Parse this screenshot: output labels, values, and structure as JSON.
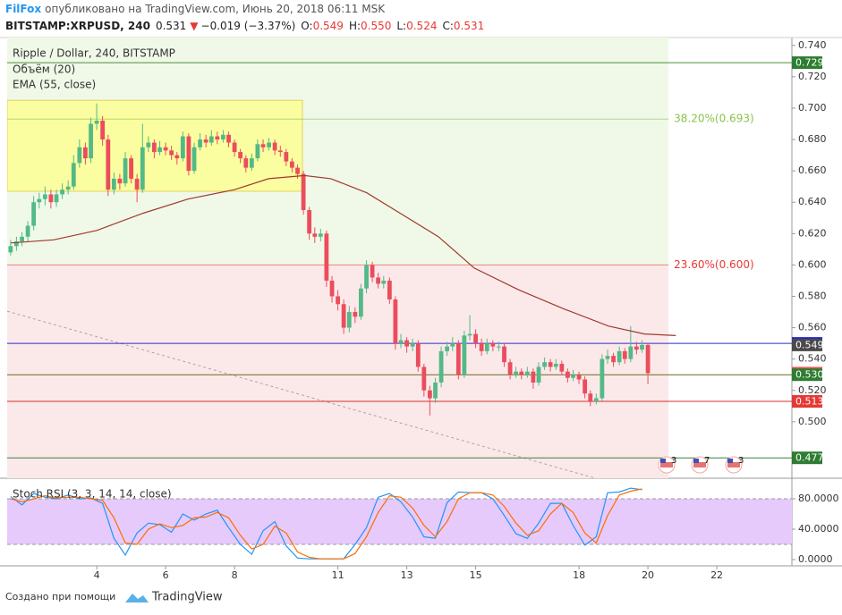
{
  "header": {
    "author": "FilFox",
    "published": "опубликовано на TradingView.com, Июнь 20, 2018 06:11 MSK",
    "symbol": "BITSTAMP:XRPUSD, 240",
    "last": "0.531",
    "arrow": "▼",
    "change": "−0.019 (−3.37%)",
    "ohlc": [
      {
        "key": "O:",
        "value": "0.549"
      },
      {
        "key": "H:",
        "value": "0.550"
      },
      {
        "key": "L:",
        "value": "0.524"
      },
      {
        "key": "C:",
        "value": "0.531"
      }
    ]
  },
  "footer": {
    "text": "Создано при помощи",
    "brand": "TradingView"
  },
  "chart_data": [
    {
      "type": "candlestick",
      "title": "Ripple / Dollar, 240, BITSTAMP",
      "indicators": [
        "Объём (20)",
        "EMA (55, close)"
      ],
      "up_color": "#53b987",
      "down_color": "#eb4d5c",
      "xlim": [
        1.4,
        24.18
      ],
      "ylim": [
        0.464,
        0.745
      ],
      "yticks": [
        {
          "value": 0.5,
          "label": "0.500"
        },
        {
          "value": 0.52,
          "label": "0.520"
        },
        {
          "value": 0.54,
          "label": "0.540"
        },
        {
          "value": 0.56,
          "label": "0.560"
        },
        {
          "value": 0.58,
          "label": "0.580"
        },
        {
          "value": 0.6,
          "label": "0.600"
        },
        {
          "value": 0.62,
          "label": "0.620"
        },
        {
          "value": 0.64,
          "label": "0.640"
        },
        {
          "value": 0.66,
          "label": "0.660"
        },
        {
          "value": 0.68,
          "label": "0.680"
        },
        {
          "value": 0.7,
          "label": "0.700"
        },
        {
          "value": 0.72,
          "label": "0.720"
        },
        {
          "value": 0.74,
          "label": "0.740"
        }
      ],
      "x": [
        1.5,
        1.67,
        1.83,
        2,
        2.17,
        2.33,
        2.5,
        2.67,
        2.83,
        3,
        3.17,
        3.33,
        3.5,
        3.67,
        3.83,
        4,
        4.17,
        4.33,
        4.5,
        4.67,
        4.83,
        5,
        5.17,
        5.33,
        5.5,
        5.67,
        5.83,
        6,
        6.17,
        6.33,
        6.5,
        6.67,
        6.83,
        7,
        7.17,
        7.33,
        7.5,
        7.67,
        7.83,
        8,
        8.17,
        8.33,
        8.5,
        8.67,
        8.83,
        9,
        9.17,
        9.33,
        9.5,
        9.67,
        9.83,
        10,
        10.17,
        10.33,
        10.5,
        10.67,
        10.83,
        11,
        11.17,
        11.33,
        11.5,
        11.67,
        11.83,
        12,
        12.17,
        12.33,
        12.5,
        12.67,
        12.83,
        13,
        13.17,
        13.33,
        13.5,
        13.67,
        13.83,
        14,
        14.17,
        14.33,
        14.5,
        14.67,
        14.83,
        15,
        15.17,
        15.33,
        15.5,
        15.67,
        15.83,
        16,
        16.17,
        16.33,
        16.5,
        16.67,
        16.83,
        17,
        17.17,
        17.33,
        17.5,
        17.67,
        17.83,
        18,
        18.17,
        18.33,
        18.5,
        18.67,
        18.83,
        19,
        19.17,
        19.33,
        19.5,
        19.67,
        19.83,
        20
      ],
      "candles": [
        [
          0.608,
          0.616,
          0.606,
          0.612
        ],
        [
          0.612,
          0.618,
          0.609,
          0.615
        ],
        [
          0.615,
          0.621,
          0.612,
          0.618
        ],
        [
          0.618,
          0.628,
          0.615,
          0.625
        ],
        [
          0.625,
          0.644,
          0.622,
          0.64
        ],
        [
          0.64,
          0.646,
          0.636,
          0.642
        ],
        [
          0.642,
          0.65,
          0.638,
          0.645
        ],
        [
          0.645,
          0.648,
          0.636,
          0.64
        ],
        [
          0.64,
          0.648,
          0.637,
          0.645
        ],
        [
          0.645,
          0.652,
          0.642,
          0.648
        ],
        [
          0.648,
          0.654,
          0.645,
          0.65
        ],
        [
          0.65,
          0.67,
          0.648,
          0.665
        ],
        [
          0.665,
          0.68,
          0.662,
          0.675
        ],
        [
          0.675,
          0.678,
          0.664,
          0.668
        ],
        [
          0.668,
          0.694,
          0.665,
          0.69
        ],
        [
          0.69,
          0.703,
          0.686,
          0.692
        ],
        [
          0.692,
          0.695,
          0.676,
          0.68
        ],
        [
          0.68,
          0.683,
          0.644,
          0.648
        ],
        [
          0.648,
          0.659,
          0.645,
          0.655
        ],
        [
          0.655,
          0.658,
          0.648,
          0.652
        ],
        [
          0.652,
          0.672,
          0.65,
          0.668
        ],
        [
          0.668,
          0.67,
          0.652,
          0.655
        ],
        [
          0.655,
          0.658,
          0.64,
          0.648
        ],
        [
          0.648,
          0.69,
          0.646,
          0.675
        ],
        [
          0.675,
          0.682,
          0.672,
          0.678
        ],
        [
          0.678,
          0.68,
          0.668,
          0.672
        ],
        [
          0.672,
          0.679,
          0.67,
          0.675
        ],
        [
          0.675,
          0.678,
          0.67,
          0.673
        ],
        [
          0.673,
          0.676,
          0.667,
          0.67
        ],
        [
          0.67,
          0.672,
          0.664,
          0.668
        ],
        [
          0.668,
          0.685,
          0.666,
          0.682
        ],
        [
          0.682,
          0.684,
          0.657,
          0.66
        ],
        [
          0.66,
          0.678,
          0.658,
          0.675
        ],
        [
          0.675,
          0.684,
          0.673,
          0.68
        ],
        [
          0.68,
          0.683,
          0.675,
          0.678
        ],
        [
          0.678,
          0.686,
          0.676,
          0.682
        ],
        [
          0.682,
          0.685,
          0.677,
          0.68
        ],
        [
          0.68,
          0.686,
          0.678,
          0.683
        ],
        [
          0.683,
          0.685,
          0.675,
          0.678
        ],
        [
          0.678,
          0.68,
          0.669,
          0.672
        ],
        [
          0.672,
          0.674,
          0.665,
          0.668
        ],
        [
          0.668,
          0.67,
          0.659,
          0.662
        ],
        [
          0.662,
          0.671,
          0.66,
          0.668
        ],
        [
          0.668,
          0.68,
          0.666,
          0.677
        ],
        [
          0.677,
          0.68,
          0.672,
          0.675
        ],
        [
          0.675,
          0.681,
          0.673,
          0.678
        ],
        [
          0.678,
          0.68,
          0.67,
          0.673
        ],
        [
          0.673,
          0.676,
          0.669,
          0.672
        ],
        [
          0.672,
          0.674,
          0.663,
          0.666
        ],
        [
          0.666,
          0.668,
          0.659,
          0.662
        ],
        [
          0.662,
          0.664,
          0.655,
          0.658
        ],
        [
          0.658,
          0.66,
          0.632,
          0.635
        ],
        [
          0.635,
          0.637,
          0.616,
          0.62
        ],
        [
          0.62,
          0.624,
          0.614,
          0.618
        ],
        [
          0.618,
          0.623,
          0.615,
          0.62
        ],
        [
          0.62,
          0.622,
          0.586,
          0.59
        ],
        [
          0.59,
          0.593,
          0.576,
          0.58
        ],
        [
          0.58,
          0.584,
          0.571,
          0.575
        ],
        [
          0.575,
          0.578,
          0.556,
          0.56
        ],
        [
          0.56,
          0.574,
          0.557,
          0.57
        ],
        [
          0.57,
          0.573,
          0.563,
          0.567
        ],
        [
          0.567,
          0.588,
          0.565,
          0.585
        ],
        [
          0.585,
          0.603,
          0.582,
          0.6
        ],
        [
          0.6,
          0.602,
          0.589,
          0.592
        ],
        [
          0.592,
          0.595,
          0.585,
          0.588
        ],
        [
          0.588,
          0.593,
          0.585,
          0.59
        ],
        [
          0.59,
          0.592,
          0.575,
          0.578
        ],
        [
          0.578,
          0.58,
          0.546,
          0.55
        ],
        [
          0.55,
          0.556,
          0.547,
          0.552
        ],
        [
          0.552,
          0.554,
          0.544,
          0.548
        ],
        [
          0.548,
          0.553,
          0.545,
          0.55
        ],
        [
          0.55,
          0.552,
          0.532,
          0.535
        ],
        [
          0.535,
          0.537,
          0.516,
          0.52
        ],
        [
          0.52,
          0.523,
          0.504,
          0.515
        ],
        [
          0.515,
          0.528,
          0.512,
          0.525
        ],
        [
          0.525,
          0.548,
          0.522,
          0.545
        ],
        [
          0.545,
          0.551,
          0.542,
          0.548
        ],
        [
          0.548,
          0.554,
          0.545,
          0.55
        ],
        [
          0.55,
          0.552,
          0.527,
          0.53
        ],
        [
          0.53,
          0.558,
          0.528,
          0.555
        ],
        [
          0.555,
          0.568,
          0.552,
          0.556
        ],
        [
          0.556,
          0.559,
          0.547,
          0.55
        ],
        [
          0.55,
          0.553,
          0.542,
          0.545
        ],
        [
          0.545,
          0.553,
          0.543,
          0.55
        ],
        [
          0.55,
          0.552,
          0.545,
          0.548
        ],
        [
          0.548,
          0.551,
          0.545,
          0.548
        ],
        [
          0.548,
          0.55,
          0.535,
          0.538
        ],
        [
          0.538,
          0.54,
          0.527,
          0.53
        ],
        [
          0.53,
          0.535,
          0.528,
          0.532
        ],
        [
          0.532,
          0.534,
          0.527,
          0.53
        ],
        [
          0.53,
          0.535,
          0.528,
          0.532
        ],
        [
          0.532,
          0.534,
          0.521,
          0.525
        ],
        [
          0.525,
          0.538,
          0.523,
          0.535
        ],
        [
          0.535,
          0.541,
          0.533,
          0.538
        ],
        [
          0.538,
          0.54,
          0.532,
          0.535
        ],
        [
          0.535,
          0.54,
          0.533,
          0.537
        ],
        [
          0.537,
          0.539,
          0.53,
          0.532
        ],
        [
          0.532,
          0.534,
          0.525,
          0.528
        ],
        [
          0.528,
          0.533,
          0.526,
          0.53
        ],
        [
          0.53,
          0.532,
          0.524,
          0.527
        ],
        [
          0.527,
          0.529,
          0.515,
          0.518
        ],
        [
          0.518,
          0.52,
          0.51,
          0.513
        ],
        [
          0.513,
          0.518,
          0.511,
          0.515
        ],
        [
          0.515,
          0.543,
          0.513,
          0.54
        ],
        [
          0.54,
          0.546,
          0.537,
          0.542
        ],
        [
          0.542,
          0.544,
          0.535,
          0.538
        ],
        [
          0.538,
          0.548,
          0.536,
          0.545
        ],
        [
          0.545,
          0.547,
          0.537,
          0.54
        ],
        [
          0.54,
          0.561,
          0.538,
          0.548
        ],
        [
          0.548,
          0.551,
          0.543,
          0.546
        ],
        [
          0.546,
          0.552,
          0.544,
          0.549
        ],
        [
          0.549,
          0.55,
          0.524,
          0.531
        ]
      ],
      "ema": {
        "color": "#a0392c",
        "x": [
          1.51,
          2.75,
          4,
          5.35,
          6.65,
          8,
          8.99,
          10.03,
          10.8,
          11.84,
          12.88,
          13.92,
          14.96,
          16.26,
          17.56,
          18.86,
          19.9,
          20.81
        ],
        "values": [
          0.614,
          0.616,
          0.622,
          0.633,
          0.642,
          0.648,
          0.655,
          0.657,
          0.655,
          0.646,
          0.632,
          0.618,
          0.598,
          0.584,
          0.572,
          0.561,
          0.556,
          0.555
        ]
      },
      "fib_x": [
        1.4,
        20.6
      ],
      "fib": [
        {
          "value": 0.693,
          "label": "38.20%(0.693)",
          "color": "#8bc34a"
        },
        {
          "value": 0.6,
          "label": "23.60%(0.600)",
          "color": "#e53935"
        }
      ],
      "rectangle": {
        "x": [
          1.4,
          9.97
        ],
        "y": [
          0.647,
          0.705
        ],
        "color": "#ffff88"
      },
      "trendline": {
        "x": [
          1.4,
          18.47
        ],
        "y": [
          0.5705,
          0.464
        ],
        "color": "#b0a0a0"
      },
      "hlines": [
        {
          "value": 0.729,
          "color": "#4e8f3a"
        },
        {
          "value": 0.55,
          "color": "#2c2cc8"
        },
        {
          "value": 0.53,
          "color": "#6b6b1f"
        },
        {
          "value": 0.513,
          "color": "#d32f2f"
        },
        {
          "value": 0.477,
          "color": "#3f7f3f"
        }
      ],
      "badges": [
        {
          "value": 0.729,
          "label": "0.729",
          "color": "#2e7d32"
        },
        {
          "value": 0.55,
          "label": "0.550",
          "color": "#2424d8"
        },
        {
          "value": 0.549,
          "label": "0.549",
          "color": "#4a4a4a"
        },
        {
          "value": 0.531,
          "label": "0.531",
          "color": "#ef5350"
        },
        {
          "value": 0.53,
          "label": "0.530",
          "color": "#2e7d32"
        },
        {
          "value": 0.513,
          "label": "0.513",
          "color": "#e53935"
        },
        {
          "value": 0.477,
          "label": "0.477",
          "color": "#2e7d32"
        }
      ],
      "events": [
        "3",
        "7",
        "3"
      ]
    },
    {
      "type": "line",
      "title": "Stoch RSI (3, 3, 14, 14, close)",
      "xlim": [
        1.4,
        24.18
      ],
      "ylim": [
        -8.2,
        104.7
      ],
      "xticks": [
        4,
        6,
        8,
        11,
        13,
        15,
        18,
        20,
        22
      ],
      "yticks": [
        {
          "value": 0,
          "label": "0.0000"
        },
        {
          "value": 40,
          "label": "40.0000"
        },
        {
          "value": 80,
          "label": "80.0000"
        }
      ],
      "band": [
        20,
        80
      ],
      "band_color": "#e6cafc",
      "x": [
        1.5,
        1.83,
        2.17,
        2.5,
        2.83,
        3.17,
        3.5,
        3.83,
        4.17,
        4.5,
        4.83,
        5.17,
        5.5,
        5.83,
        6.17,
        6.5,
        6.83,
        7.17,
        7.5,
        7.83,
        8.17,
        8.5,
        8.83,
        9.17,
        9.5,
        9.83,
        10.17,
        10.5,
        10.83,
        11.17,
        11.5,
        11.83,
        12.17,
        12.5,
        12.83,
        13.17,
        13.5,
        13.83,
        14.17,
        14.5,
        14.83,
        15.17,
        15.5,
        15.83,
        16.17,
        16.5,
        16.83,
        17.17,
        17.5,
        17.83,
        18.17,
        18.5,
        18.83,
        19.17,
        19.5,
        19.83
      ],
      "series": [
        {
          "color": "#2196f3",
          "values": [
            83,
            72,
            87,
            82,
            80,
            85,
            80,
            81,
            74,
            28,
            6,
            35,
            48,
            46,
            36,
            60,
            52,
            60,
            65,
            42,
            20,
            7,
            38,
            50,
            18,
            2,
            1,
            1,
            1,
            1,
            20,
            42,
            82,
            87,
            76,
            56,
            30,
            28,
            75,
            89,
            88,
            88,
            80,
            58,
            34,
            28,
            48,
            74,
            74,
            45,
            19,
            30,
            88,
            89,
            94,
            92
          ]
        },
        {
          "color": "#ff6d00",
          "values": [
            80,
            76,
            80,
            84,
            81,
            82,
            82,
            80,
            78,
            55,
            22,
            20,
            40,
            47,
            42,
            45,
            55,
            56,
            62,
            55,
            32,
            14,
            20,
            44,
            35,
            10,
            3,
            1,
            1,
            1,
            8,
            30,
            62,
            84,
            82,
            68,
            45,
            30,
            50,
            80,
            88,
            88,
            85,
            70,
            48,
            32,
            38,
            60,
            74,
            62,
            35,
            22,
            58,
            85,
            90,
            93
          ]
        }
      ]
    }
  ]
}
